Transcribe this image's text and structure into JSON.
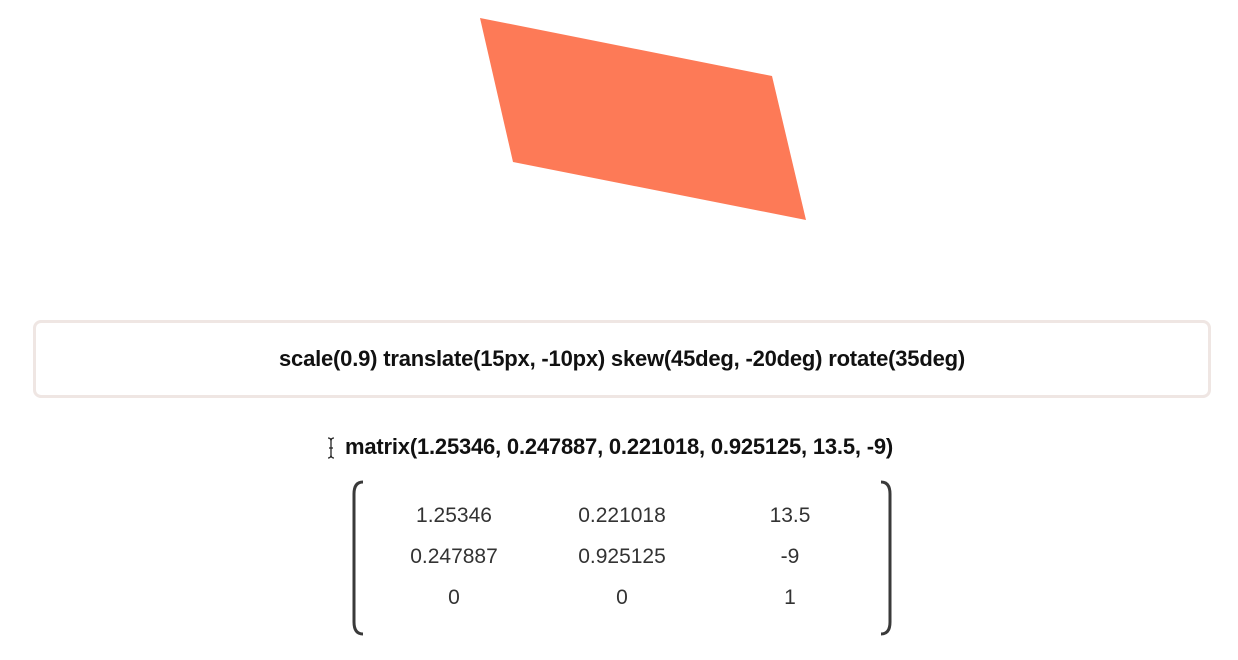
{
  "shape": {
    "fill_color": "#fd7a57"
  },
  "transform_input": {
    "value": "scale(0.9) translate(15px, -10px) skew(45deg, -20deg) rotate(35deg)"
  },
  "matrix_output": {
    "text": "matrix(1.25346, 0.247887, 0.221018, 0.925125, 13.5, -9)"
  },
  "matrix_table": {
    "rows": [
      [
        "1.25346",
        "0.221018",
        "13.5"
      ],
      [
        "0.247887",
        "0.925125",
        "-9"
      ],
      [
        "0",
        "0",
        "1"
      ]
    ]
  }
}
